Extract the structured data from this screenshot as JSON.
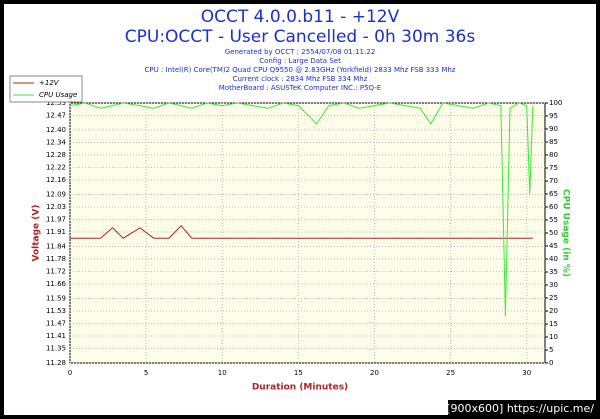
{
  "chart_data": {
    "type": "line",
    "title": "OCCT 4.0.0.b11 - +12V",
    "subtitle": "CPU:OCCT - User Cancelled - 0h 30m 36s",
    "info": [
      "Generated by OCCT : 2554/07/08 01:11:22",
      "Config : Large Data Set",
      "CPU : Intel(R) Core(TM)2 Quad CPU Q9550 @ 2.83GHz (Yorkfield) 2833 Mhz FSB 333 Mhz",
      "Current clock : 2834 Mhz FSB 334 Mhz",
      "MotherBoard : ASUSTeK Computer INC.: P5Q-E"
    ],
    "xlabel": "Duration (Minutes)",
    "ylabel": "Voltage (V)",
    "y2label": "CPU Usage (in %)",
    "watermark": "[900x600] https://upic.me/",
    "x": [
      0,
      1,
      2,
      2.8,
      3.5,
      4.6,
      5.5,
      6.5,
      7.3,
      8,
      9,
      10,
      11,
      12,
      13,
      14,
      15,
      16.2,
      17,
      18,
      19,
      20,
      21,
      22,
      23,
      23.7,
      24.5,
      25.5,
      26.5,
      27.5,
      28.3,
      28.6,
      28.9,
      29.5,
      30,
      30.2,
      30.4
    ],
    "series": [
      {
        "name": "+12V",
        "color": "#b22222",
        "axis": "y",
        "values": [
          11.88,
          11.88,
          11.88,
          11.93,
          11.88,
          11.93,
          11.88,
          11.88,
          11.94,
          11.88,
          11.88,
          11.88,
          11.88,
          11.88,
          11.88,
          11.88,
          11.88,
          11.88,
          11.88,
          11.88,
          11.88,
          11.88,
          11.88,
          11.88,
          11.88,
          11.88,
          11.88,
          11.88,
          11.88,
          11.88,
          11.88,
          11.88,
          11.88,
          11.88,
          11.88,
          11.88,
          11.88
        ]
      },
      {
        "name": "CPU Usage",
        "color": "#33ee33",
        "axis": "y2",
        "values": [
          99,
          100,
          98,
          99,
          100,
          99,
          98,
          100,
          99,
          98,
          100,
          99,
          100,
          99,
          98,
          100,
          99,
          92,
          99,
          100,
          98,
          99,
          100,
          99,
          98,
          92,
          100,
          99,
          98,
          100,
          99,
          18,
          98,
          100,
          99,
          65,
          99
        ]
      }
    ],
    "xlim": [
      0,
      31.2
    ],
    "xticks": [
      0,
      5,
      10,
      15,
      20,
      25,
      30
    ],
    "ylim": [
      11.28,
      12.53
    ],
    "yticks": [
      11.28,
      11.35,
      11.41,
      11.47,
      11.53,
      11.59,
      11.66,
      11.72,
      11.78,
      11.84,
      11.91,
      11.97,
      12.03,
      12.09,
      12.16,
      12.22,
      12.28,
      12.34,
      {
        "value": 12.4,
        "label": "12.40"
      },
      12.47,
      12.53
    ],
    "y2lim": [
      0,
      100
    ],
    "y2ticks": [
      0,
      5,
      10,
      15,
      20,
      25,
      30,
      35,
      40,
      45,
      50,
      55,
      60,
      65,
      70,
      75,
      80,
      85,
      90,
      95,
      100
    ],
    "grid": true,
    "legend": "top-left"
  }
}
